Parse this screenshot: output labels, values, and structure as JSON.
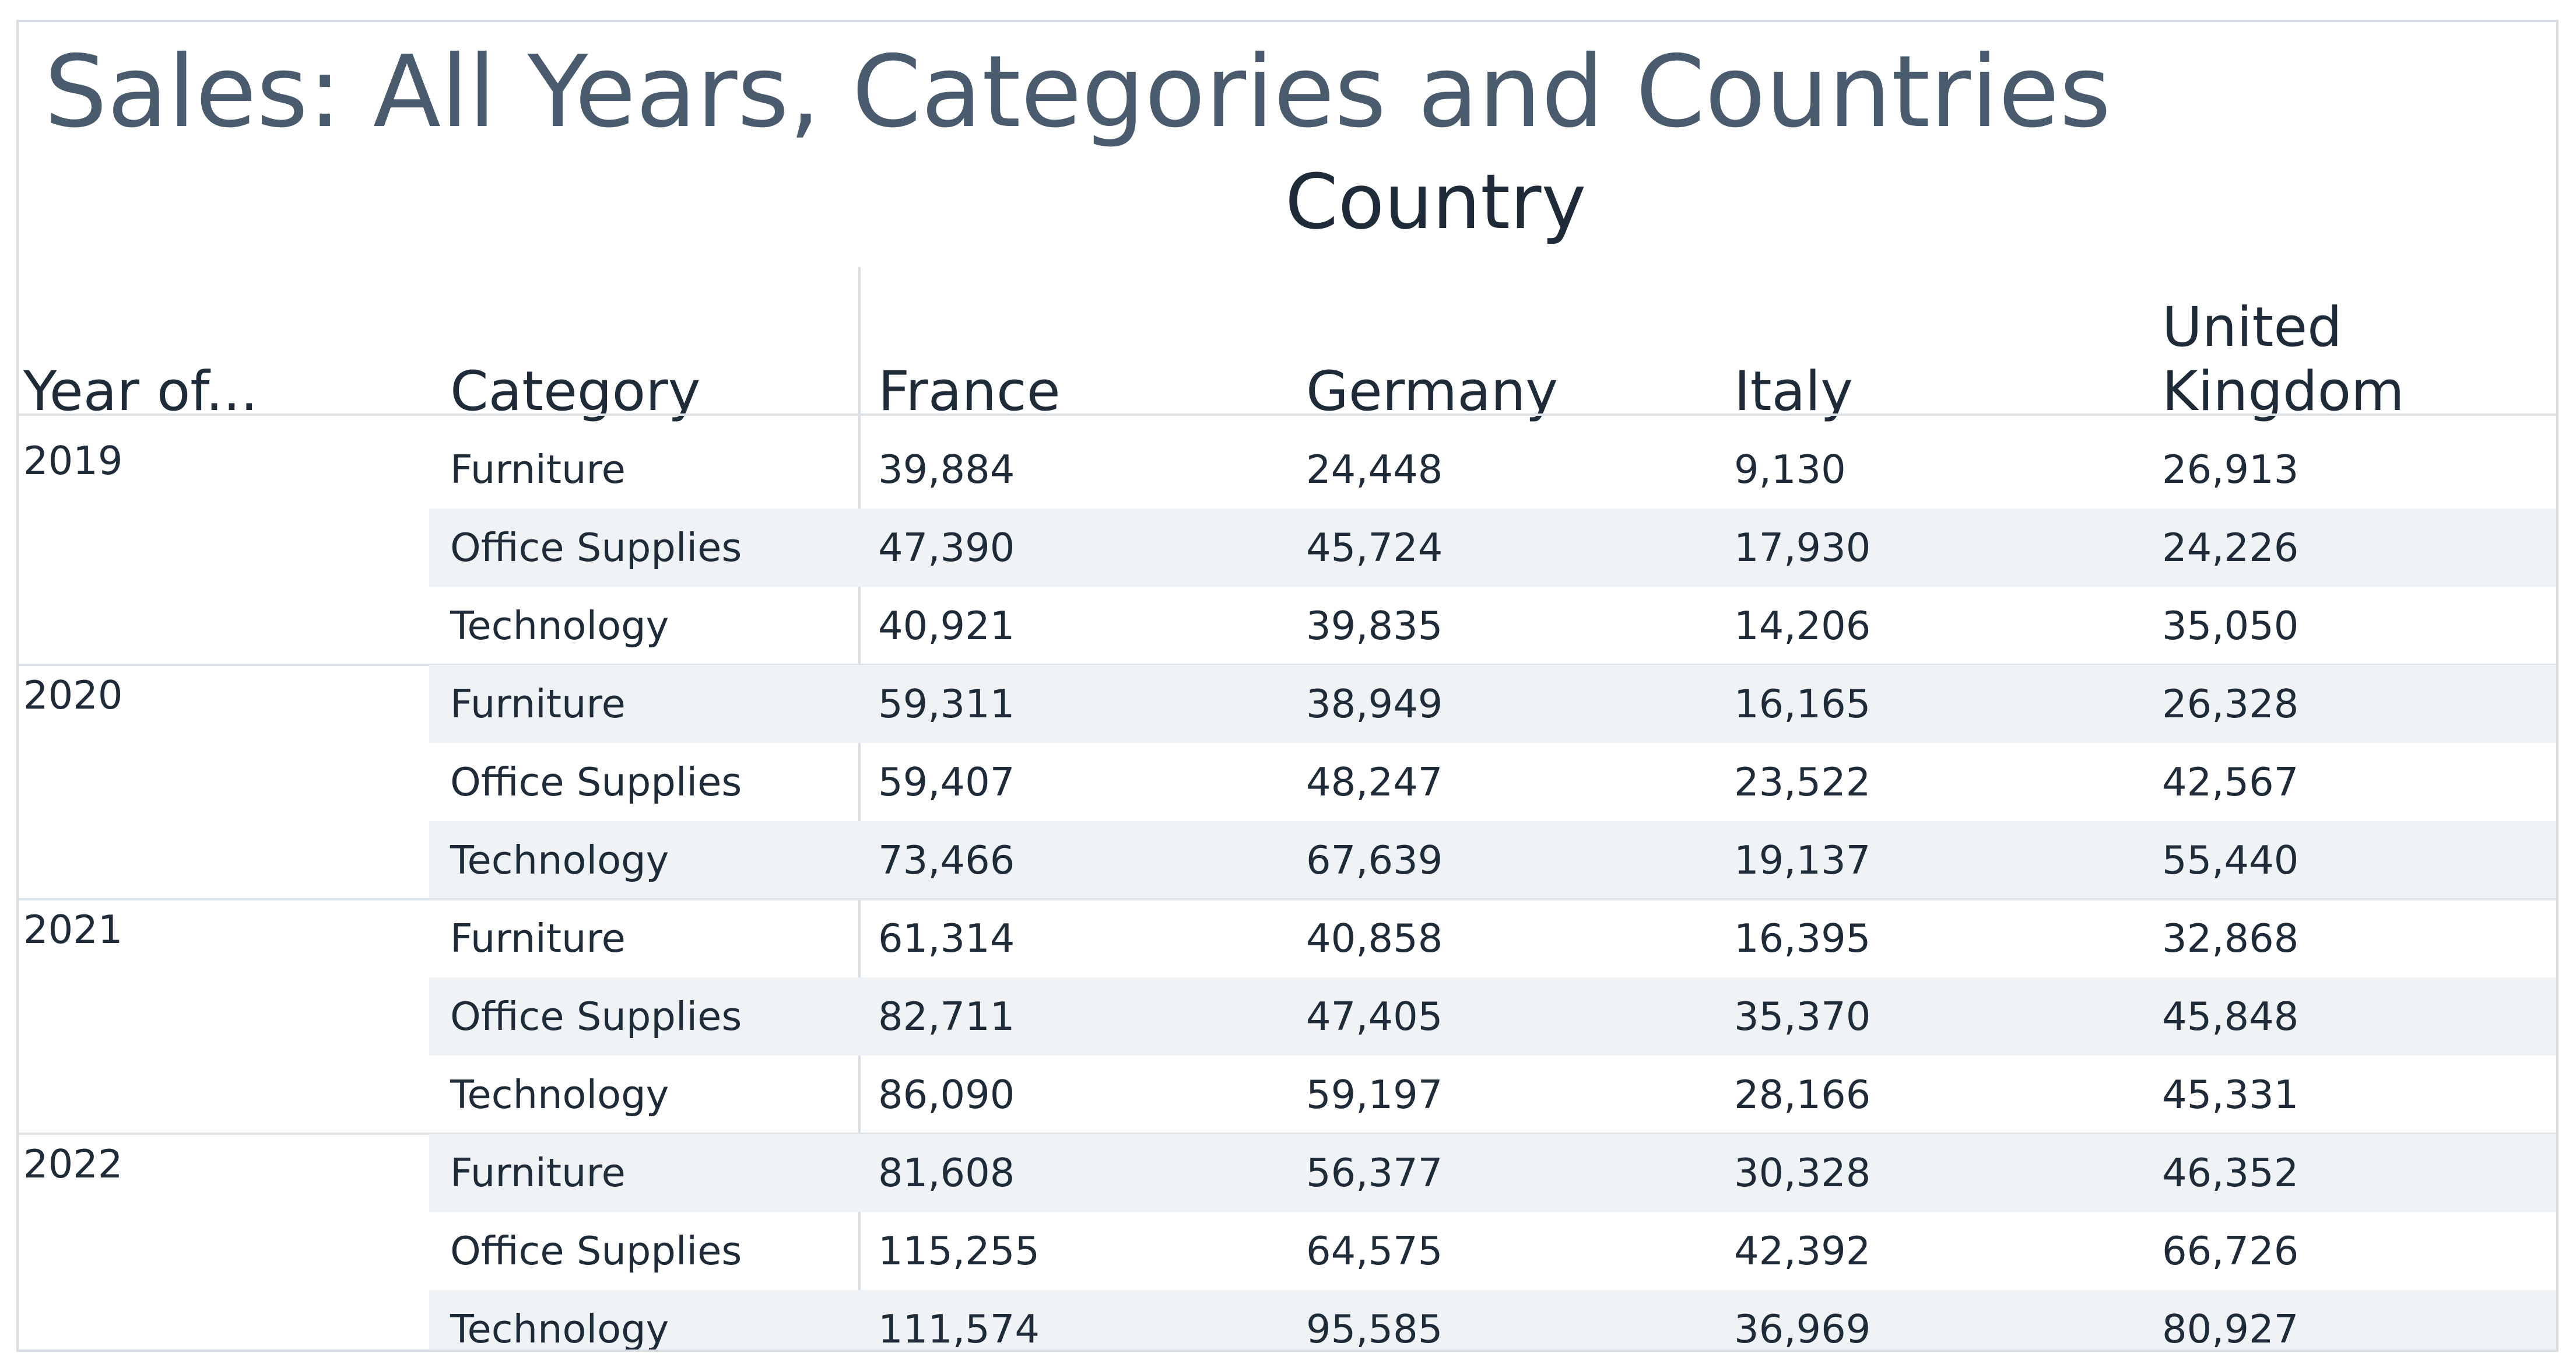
{
  "title": "Sales: All Years, Categories and Countries",
  "column_group_header": "Country",
  "row_headers": {
    "year": "Year of...",
    "category": "Category"
  },
  "colors": {
    "title": "#4a5b6e",
    "text": "#1f2b38",
    "band": "#f0f3f6",
    "rule": "#dde2e7"
  },
  "chart_data": {
    "type": "table",
    "title": "Sales: All Years, Categories and Countries",
    "column_group": "Country",
    "columns": [
      "France",
      "Germany",
      "Italy",
      "United Kingdom"
    ],
    "column_labels": [
      [
        "France"
      ],
      [
        "Germany"
      ],
      [
        "Italy"
      ],
      [
        "United",
        "Kingdom"
      ]
    ],
    "groups": [
      {
        "year": "2019",
        "rows": [
          {
            "category": "Furniture",
            "values": [
              "39,884",
              "24,448",
              "9,130",
              "26,913"
            ]
          },
          {
            "category": "Office Supplies",
            "values": [
              "47,390",
              "45,724",
              "17,930",
              "24,226"
            ]
          },
          {
            "category": "Technology",
            "values": [
              "40,921",
              "39,835",
              "14,206",
              "35,050"
            ]
          }
        ]
      },
      {
        "year": "2020",
        "rows": [
          {
            "category": "Furniture",
            "values": [
              "59,311",
              "38,949",
              "16,165",
              "26,328"
            ]
          },
          {
            "category": "Office Supplies",
            "values": [
              "59,407",
              "48,247",
              "23,522",
              "42,567"
            ]
          },
          {
            "category": "Technology",
            "values": [
              "73,466",
              "67,639",
              "19,137",
              "55,440"
            ]
          }
        ]
      },
      {
        "year": "2021",
        "rows": [
          {
            "category": "Furniture",
            "values": [
              "61,314",
              "40,858",
              "16,395",
              "32,868"
            ]
          },
          {
            "category": "Office Supplies",
            "values": [
              "82,711",
              "47,405",
              "35,370",
              "45,848"
            ]
          },
          {
            "category": "Technology",
            "values": [
              "86,090",
              "59,197",
              "28,166",
              "45,331"
            ]
          }
        ]
      },
      {
        "year": "2022",
        "rows": [
          {
            "category": "Furniture",
            "values": [
              "81,608",
              "56,377",
              "30,328",
              "46,352"
            ]
          },
          {
            "category": "Office Supplies",
            "values": [
              "115,255",
              "64,575",
              "42,392",
              "66,726"
            ]
          },
          {
            "category": "Technology",
            "values": [
              "111,574",
              "95,585",
              "36,969",
              "80,927"
            ]
          }
        ]
      }
    ]
  }
}
